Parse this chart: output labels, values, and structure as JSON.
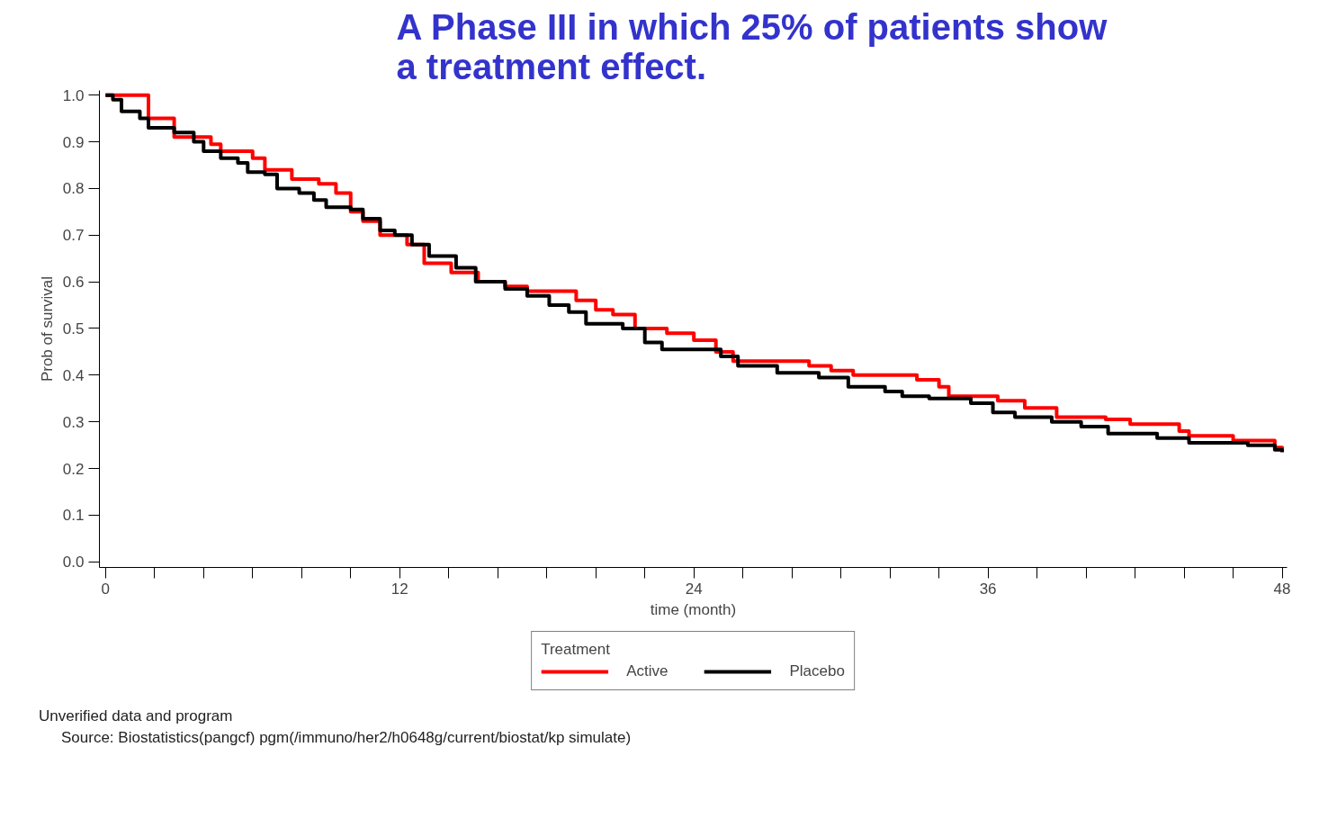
{
  "chart_data": {
    "type": "step",
    "title": "A Phase III in which 25% of patients show a treatment effect.",
    "xlabel": "time (month)",
    "ylabel": "Prob of survival",
    "legend_title": "Treatment",
    "legend": "bottom",
    "grid": false,
    "line_style": "solid",
    "marker": "none",
    "xlim": [
      -0.25,
      48.2
    ],
    "ylim": [
      -0.012,
      1.01
    ],
    "xticks": [
      0,
      {
        "value": 2,
        "label": null
      },
      {
        "value": 4,
        "label": null
      },
      {
        "value": 6,
        "label": null
      },
      {
        "value": 8,
        "label": null
      },
      {
        "value": 10,
        "label": null
      },
      12,
      {
        "value": 14,
        "label": null
      },
      {
        "value": 16,
        "label": null
      },
      {
        "value": 18,
        "label": null
      },
      {
        "value": 20,
        "label": null
      },
      {
        "value": 22,
        "label": null
      },
      24,
      {
        "value": 26,
        "label": null
      },
      {
        "value": 28,
        "label": null
      },
      {
        "value": 30,
        "label": null
      },
      {
        "value": 32,
        "label": null
      },
      {
        "value": 34,
        "label": null
      },
      36,
      {
        "value": 38,
        "label": null
      },
      {
        "value": 40,
        "label": null
      },
      {
        "value": 42,
        "label": null
      },
      {
        "value": 44,
        "label": null
      },
      {
        "value": 46,
        "label": null
      },
      48
    ],
    "yticks": [
      {
        "value": 0,
        "label": "0.0"
      },
      0.1,
      0.2,
      0.3,
      0.4,
      0.5,
      0.6,
      0.7,
      0.8,
      0.9,
      {
        "value": 1,
        "label": "1.0"
      }
    ],
    "series": [
      {
        "name": "Active",
        "color": "#ff0000",
        "x": [
          0,
          1.75,
          2.8,
          4.3,
          4.7,
          6.0,
          6.5,
          7.6,
          8.7,
          9.4,
          10.0,
          10.5,
          11.2,
          12.3,
          13.0,
          14.1,
          15.2,
          16.3,
          17.2,
          19.2,
          20.0,
          20.7,
          21.6,
          22.9,
          24.0,
          24.9,
          25.6,
          28.7,
          29.6,
          30.5,
          33.1,
          34.0,
          34.4,
          36.4,
          37.5,
          38.8,
          40.8,
          41.8,
          43.8,
          44.2,
          46.0,
          47.7,
          48.0
        ],
        "values": [
          1.0,
          0.95,
          0.91,
          0.895,
          0.88,
          0.865,
          0.84,
          0.82,
          0.81,
          0.79,
          0.75,
          0.73,
          0.7,
          0.68,
          0.64,
          0.62,
          0.6,
          0.59,
          0.58,
          0.56,
          0.54,
          0.53,
          0.5,
          0.49,
          0.475,
          0.45,
          0.43,
          0.42,
          0.41,
          0.4,
          0.39,
          0.375,
          0.355,
          0.345,
          0.33,
          0.31,
          0.305,
          0.295,
          0.28,
          0.27,
          0.26,
          0.245,
          0.24
        ]
      },
      {
        "name": "Placebo",
        "color": "#000000",
        "x": [
          0,
          0.3,
          0.65,
          1.4,
          1.75,
          2.8,
          3.6,
          4.0,
          4.7,
          5.4,
          5.8,
          6.5,
          7.0,
          7.9,
          8.5,
          9.0,
          10.0,
          10.5,
          11.2,
          11.8,
          12.5,
          13.2,
          14.3,
          15.1,
          16.3,
          17.2,
          18.1,
          18.9,
          19.6,
          21.1,
          22.0,
          22.7,
          24.3,
          25.1,
          25.8,
          27.4,
          29.1,
          30.3,
          31.8,
          32.5,
          33.6,
          35.3,
          36.2,
          37.1,
          38.6,
          39.8,
          40.9,
          42.9,
          44.2,
          46.6,
          47.7,
          48.0
        ],
        "values": [
          1.0,
          0.99,
          0.965,
          0.95,
          0.93,
          0.92,
          0.9,
          0.88,
          0.865,
          0.855,
          0.835,
          0.83,
          0.8,
          0.79,
          0.775,
          0.76,
          0.755,
          0.735,
          0.71,
          0.7,
          0.68,
          0.655,
          0.63,
          0.6,
          0.585,
          0.57,
          0.55,
          0.535,
          0.51,
          0.5,
          0.47,
          0.455,
          0.455,
          0.44,
          0.42,
          0.405,
          0.395,
          0.375,
          0.365,
          0.355,
          0.35,
          0.34,
          0.32,
          0.31,
          0.3,
          0.29,
          0.275,
          0.265,
          0.255,
          0.25,
          0.24,
          0.235
        ]
      }
    ],
    "annotations": [
      "Unverified data and program",
      "Source: Biostatistics(pangcf) pgm(/immuno/her2/h0648g/current/biostat/kp simulate)"
    ]
  }
}
